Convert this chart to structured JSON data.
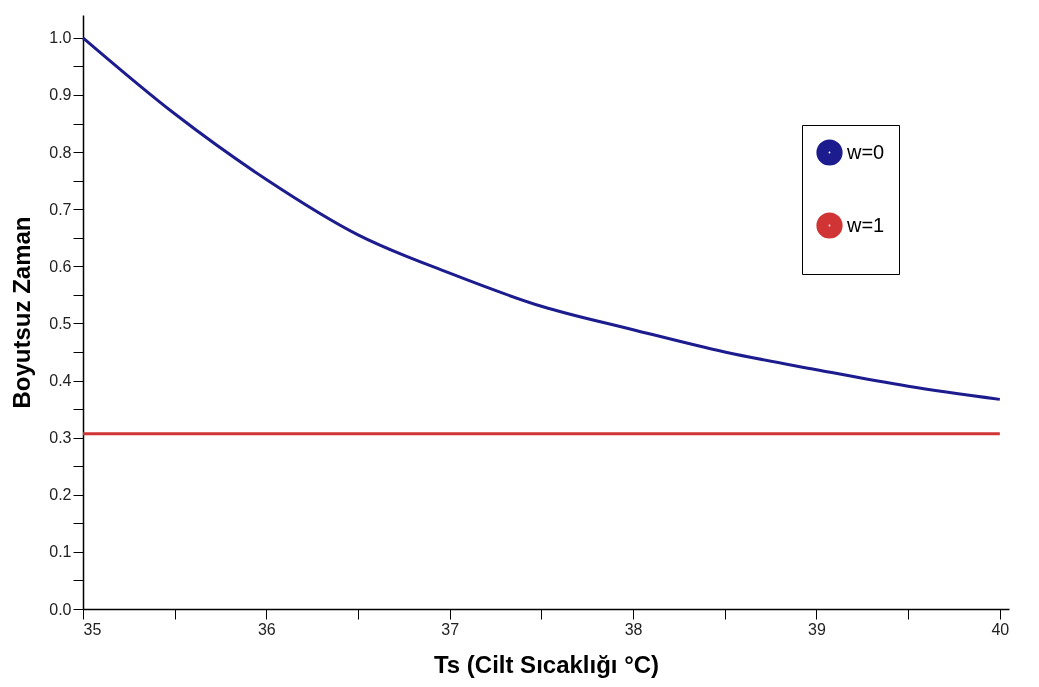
{
  "chart_data": {
    "type": "line",
    "xlabel": "Ts (Cilt Sıcaklığı °C)",
    "ylabel": "Boyutsuz Zaman",
    "x": [
      35,
      35.5,
      36,
      36.5,
      37,
      37.5,
      38,
      38.5,
      39,
      39.5,
      40
    ],
    "series": [
      {
        "name": "w=0",
        "color": "#1c1c8e",
        "values": [
          1.0,
          0.867,
          0.752,
          0.655,
          0.588,
          0.53,
          0.489,
          0.45,
          0.419,
          0.39,
          0.367
        ]
      },
      {
        "name": "w=1",
        "color": "#d03434",
        "values": [
          0.307,
          0.307,
          0.307,
          0.307,
          0.307,
          0.307,
          0.307,
          0.307,
          0.307,
          0.307,
          0.307
        ]
      }
    ],
    "xlim": [
      35,
      40.05
    ],
    "ylim": [
      0,
      1.04
    ],
    "xticks": [
      35,
      {
        "value": 35.5,
        "label": null
      },
      36,
      {
        "value": 36.5,
        "label": null
      },
      37,
      {
        "value": 37.5,
        "label": null
      },
      38,
      {
        "value": 38.5,
        "label": null
      },
      39,
      {
        "value": 39.5,
        "label": null
      },
      40
    ],
    "yticks": [
      {
        "value": 0,
        "label": "0.0"
      },
      {
        "value": 0.05,
        "label": null
      },
      0.1,
      {
        "value": 0.15,
        "label": null
      },
      0.2,
      {
        "value": 0.25,
        "label": null
      },
      0.3,
      {
        "value": 0.35,
        "label": null
      },
      0.4,
      {
        "value": 0.45,
        "label": null
      },
      0.5,
      {
        "value": 0.55,
        "label": null
      },
      0.6,
      {
        "value": 0.65,
        "label": null
      },
      0.7,
      {
        "value": 0.75,
        "label": null
      },
      0.8,
      {
        "value": 0.85,
        "label": null
      },
      0.9,
      {
        "value": 0.95,
        "label": null
      },
      {
        "value": 1,
        "label": "1.0"
      }
    ],
    "grid": false,
    "legend": "top right",
    "marker": "none",
    "line_style": "solid"
  }
}
